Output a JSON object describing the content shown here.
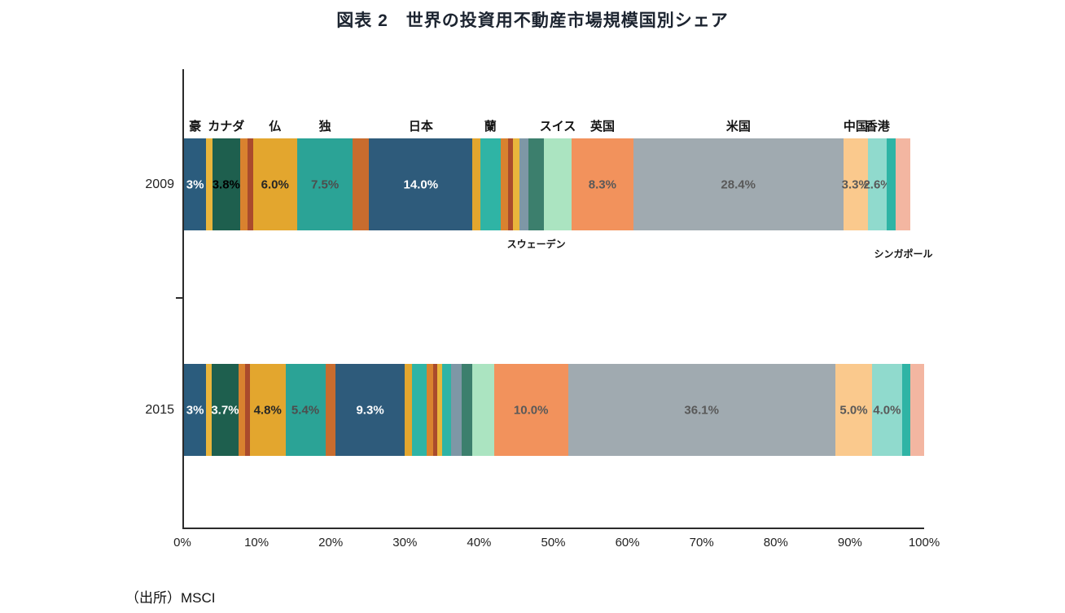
{
  "title": "図表 2　世界の投資用不動産市場規模国別シェア",
  "source": "（出所）MSCI",
  "chart_data": {
    "type": "bar",
    "subtype": "horizontal-stacked-100pct",
    "title": "図表 2　世界の投資用不動産市場規模国別シェア",
    "xlabel": "",
    "ylabel": "",
    "unit": "%",
    "x_range": [
      0,
      100
    ],
    "grid": false,
    "legend": "none",
    "x_ticks": [
      "0%",
      "10%",
      "20%",
      "30%",
      "40%",
      "50%",
      "60%",
      "70%",
      "80%",
      "90%",
      "100%"
    ],
    "rows": [
      {
        "year": "2009",
        "segments": [
          {
            "country": "豪",
            "value": 3.0,
            "color": "#2b5c7d",
            "text": "3%",
            "text_color": "#ffffff",
            "label_pos": "above"
          },
          {
            "country": "",
            "value": 0.8,
            "color": "#e9b53c"
          },
          {
            "country": "カナダ",
            "value": 3.8,
            "color": "#1e5f4e",
            "text": "3.8%",
            "text_color": "#000000",
            "label_pos": "above"
          },
          {
            "country": "",
            "value": 1.0,
            "color": "#d9822f"
          },
          {
            "country": "",
            "value": 0.7,
            "color": "#aa4b2c"
          },
          {
            "country": "仏",
            "value": 6.0,
            "color": "#e3a62e",
            "text": "6.0%",
            "text_color": "#262626",
            "label_pos": "above"
          },
          {
            "country": "独",
            "value": 7.5,
            "color": "#2ba396",
            "text": "7.5%",
            "text_color": "#4d4d4d",
            "label_pos": "above"
          },
          {
            "country": "",
            "value": 2.2,
            "color": "#c86c2e"
          },
          {
            "country": "日本",
            "value": 14.0,
            "color": "#2e5b7b",
            "text": "14.0%",
            "text_color": "#ffffff",
            "label_pos": "above"
          },
          {
            "country": "",
            "value": 1.0,
            "color": "#e3a62e"
          },
          {
            "country": "蘭",
            "value": 2.8,
            "color": "#2fb4a5",
            "label_pos": "above"
          },
          {
            "country": "",
            "value": 1.0,
            "color": "#d9822f"
          },
          {
            "country": "",
            "value": 0.7,
            "color": "#aa4b2c"
          },
          {
            "country": "",
            "value": 0.8,
            "color": "#e9b53c"
          },
          {
            "country": "",
            "value": 1.3,
            "color": "#7e97a6"
          },
          {
            "country": "スウェーデン",
            "value": 2.0,
            "color": "#3c7f6d",
            "label_pos": "below",
            "label_offset": 8
          },
          {
            "country": "スイス",
            "value": 3.8,
            "color": "#abe4c1",
            "label_pos": "above"
          },
          {
            "country": "英国",
            "value": 8.3,
            "color": "#f2925c",
            "text": "8.3%",
            "text_color": "#595959",
            "label_pos": "above"
          },
          {
            "country": "米国",
            "value": 28.4,
            "color": "#a0aab0",
            "text": "28.4%",
            "text_color": "#595959",
            "label_pos": "above"
          },
          {
            "country": "中国",
            "value": 3.3,
            "color": "#fac98d",
            "text": "3.3%",
            "text_color": "#595959",
            "label_pos": "above"
          },
          {
            "country": "香港",
            "value": 2.6,
            "color": "#90dacd",
            "text": "2.6%",
            "text_color": "#595959",
            "label_pos": "above"
          },
          {
            "country": "",
            "value": 1.2,
            "color": "#2fb4a5"
          },
          {
            "country": "シンガポール",
            "value": 2.0,
            "color": "#f3b6a1",
            "label_pos": "below",
            "label_offset": 20
          }
        ]
      },
      {
        "year": "2015",
        "segments": [
          {
            "country": "豪",
            "value": 3.0,
            "color": "#2b5c7d",
            "text": "3%",
            "text_color": "#ffffff"
          },
          {
            "country": "",
            "value": 0.7,
            "color": "#e9b53c"
          },
          {
            "country": "カナダ",
            "value": 3.7,
            "color": "#1e5f4e",
            "text": "3.7%",
            "text_color": "#ffffff"
          },
          {
            "country": "",
            "value": 0.9,
            "color": "#d9822f"
          },
          {
            "country": "",
            "value": 0.6,
            "color": "#aa4b2c"
          },
          {
            "country": "仏",
            "value": 4.8,
            "color": "#e3a62e",
            "text": "4.8%",
            "text_color": "#262626"
          },
          {
            "country": "独",
            "value": 5.4,
            "color": "#2ba396",
            "text": "5.4%",
            "text_color": "#4d4d4d"
          },
          {
            "country": "",
            "value": 1.4,
            "color": "#c86c2e"
          },
          {
            "country": "日本",
            "value": 9.3,
            "color": "#2e5b7b",
            "text": "9.3%",
            "text_color": "#ffffff"
          },
          {
            "country": "",
            "value": 1.0,
            "color": "#e3a62e"
          },
          {
            "country": "蘭",
            "value": 2.0,
            "color": "#2fb4a5"
          },
          {
            "country": "",
            "value": 0.9,
            "color": "#d9822f"
          },
          {
            "country": "",
            "value": 0.5,
            "color": "#aa4b2c"
          },
          {
            "country": "",
            "value": 0.7,
            "color": "#e9b53c"
          },
          {
            "country": "",
            "value": 1.2,
            "color": "#2fb4a5"
          },
          {
            "country": "",
            "value": 1.4,
            "color": "#7e97a6"
          },
          {
            "country": "スウェーデン",
            "value": 1.5,
            "color": "#3c7f6d"
          },
          {
            "country": "スイス",
            "value": 2.9,
            "color": "#abe4c1"
          },
          {
            "country": "英国",
            "value": 10.0,
            "color": "#f2925c",
            "text": "10.0%",
            "text_color": "#595959"
          },
          {
            "country": "米国",
            "value": 36.1,
            "color": "#a0aab0",
            "text": "36.1%",
            "text_color": "#595959"
          },
          {
            "country": "中国",
            "value": 5.0,
            "color": "#fac98d",
            "text": "5.0%",
            "text_color": "#595959"
          },
          {
            "country": "香港",
            "value": 4.0,
            "color": "#90dacd",
            "text": "4.0%",
            "text_color": "#595959"
          },
          {
            "country": "",
            "value": 1.1,
            "color": "#2fb4a5"
          },
          {
            "country": "シンガポール",
            "value": 1.9,
            "color": "#f3b6a1"
          }
        ]
      }
    ]
  }
}
